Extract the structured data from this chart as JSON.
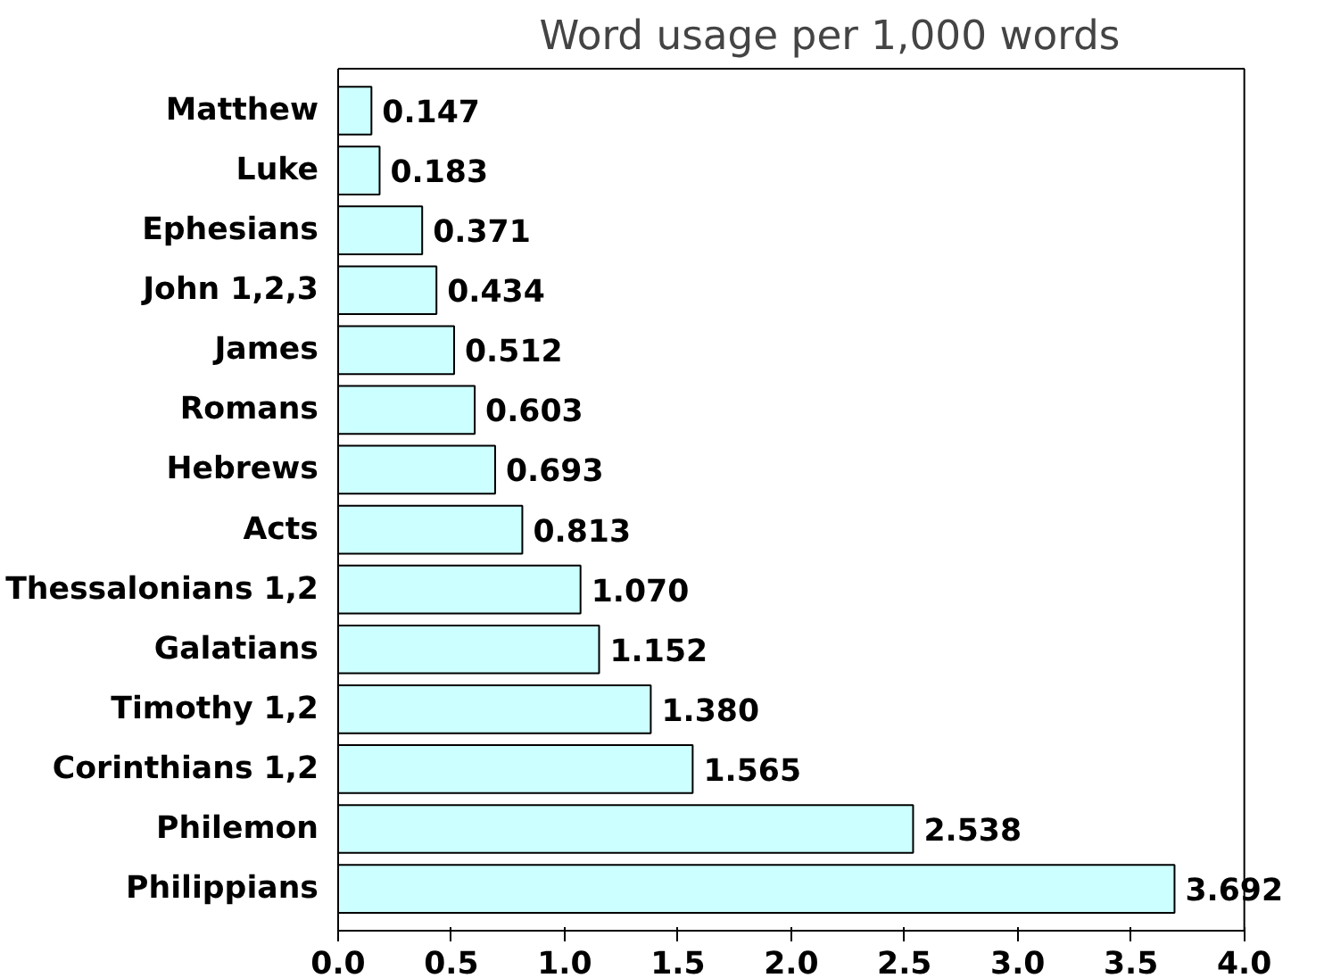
{
  "chart_data": {
    "type": "bar",
    "orientation": "horizontal",
    "title": "Word usage per 1,000 words",
    "categories": [
      "Matthew",
      "Luke",
      "Ephesians",
      "John 1,2,3",
      "James",
      "Romans",
      "Hebrews",
      "Acts",
      "Thessalonians 1,2",
      "Galatians",
      "Timothy 1,2",
      "Corinthians 1,2",
      "Philemon",
      "Philippians"
    ],
    "values": [
      0.147,
      0.183,
      0.371,
      0.434,
      0.512,
      0.603,
      0.693,
      0.813,
      1.07,
      1.152,
      1.38,
      1.565,
      2.538,
      3.692
    ],
    "value_labels": [
      "0.147",
      "0.183",
      "0.371",
      "0.434",
      "0.512",
      "0.603",
      "0.693",
      "0.813",
      "1.070",
      "1.152",
      "1.380",
      "1.565",
      "2.538",
      "3.692"
    ],
    "color": "#ccffff",
    "xlim": [
      0,
      4
    ],
    "xticks": [
      {
        "value": 0,
        "label": "0.0"
      },
      {
        "value": 0.5,
        "label": "0.5"
      },
      {
        "value": 1,
        "label": "1.0"
      },
      {
        "value": 1.5,
        "label": "1.5"
      },
      {
        "value": 2,
        "label": "2.0"
      },
      {
        "value": 2.5,
        "label": "2.5"
      },
      {
        "value": 3,
        "label": "3.0"
      },
      {
        "value": 3.5,
        "label": "3.5"
      },
      {
        "value": 4,
        "label": "4.0"
      }
    ],
    "grid": false
  }
}
